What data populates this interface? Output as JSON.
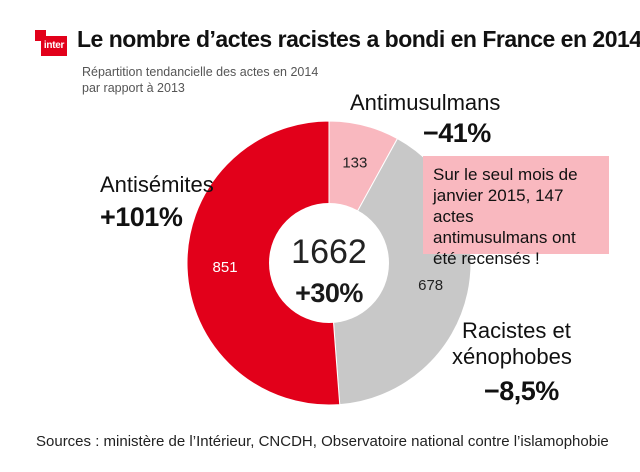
{
  "logo": {
    "text": "inter"
  },
  "header": {
    "title": "Le nombre d’actes racistes a bondi en France en 2014"
  },
  "subtitle": {
    "line1": "Répartition tendancielle des actes en 2014",
    "line2": "par rapport à 2013"
  },
  "colors": {
    "antisemites": "#e2001a",
    "antimusulmans": "#f9b8bf",
    "racistes": "#c8c8c8",
    "callout_bg": "#f9b8bf"
  },
  "chart_data": {
    "type": "pie",
    "variant": "donut",
    "total": {
      "value": "1662",
      "change": "+30%"
    },
    "slices": [
      {
        "name": "Antimusulmans",
        "value": 133,
        "change": "−41%",
        "color": "#f9b8bf"
      },
      {
        "name": "Racistes et xénophobes",
        "value": 678,
        "change": "−8,5%",
        "color": "#c8c8c8"
      },
      {
        "name": "Antisémites",
        "value": 851,
        "change": "+101%",
        "color": "#e2001a"
      }
    ]
  },
  "labels": {
    "antimusulmans": {
      "name": "Antimusulmans",
      "pct": "−41%"
    },
    "antisemites": {
      "name": "Antisémites",
      "pct": "+101%"
    },
    "racistes": {
      "line1": "Racistes et",
      "line2": "xénophobes",
      "pct": "−8,5%"
    }
  },
  "callout": {
    "line1": "Sur le seul mois de",
    "line2": "janvier 2015, 147 actes",
    "line3": "antimusulmans ont",
    "line4": "été recensés !"
  },
  "sources": {
    "text": "Sources : ministère de l’Intérieur, CNCDH, Observatoire national contre l’islamophobie"
  }
}
